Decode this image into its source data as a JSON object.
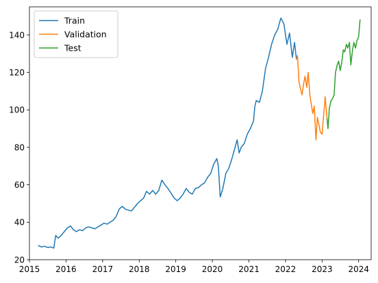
{
  "chart_data": {
    "type": "line",
    "title": "",
    "xlabel": "",
    "ylabel": "",
    "xlim": [
      "2015-01-01",
      "2024-05-05"
    ],
    "ylim": [
      20,
      155
    ],
    "x_ticks": [
      "2015",
      "2016",
      "2017",
      "2018",
      "2019",
      "2020",
      "2021",
      "2022",
      "2023",
      "2024"
    ],
    "y_ticks": [
      20,
      40,
      60,
      80,
      100,
      120,
      140
    ],
    "grid": false,
    "legend_position": "top-left",
    "series": [
      {
        "name": "Train",
        "color": "#1f77b4",
        "points": [
          [
            "2015-04-01",
            27.5
          ],
          [
            "2015-05-01",
            26.8
          ],
          [
            "2015-06-01",
            27.2
          ],
          [
            "2015-07-01",
            26.5
          ],
          [
            "2015-08-01",
            26.8
          ],
          [
            "2015-09-01",
            26.2
          ],
          [
            "2015-09-20",
            33.0
          ],
          [
            "2015-10-15",
            31.5
          ],
          [
            "2015-11-15",
            33.0
          ],
          [
            "2015-12-15",
            35.0
          ],
          [
            "2016-01-15",
            37.0
          ],
          [
            "2016-02-15",
            38.0
          ],
          [
            "2016-03-15",
            36.0
          ],
          [
            "2016-04-15",
            35.0
          ],
          [
            "2016-05-15",
            36.0
          ],
          [
            "2016-06-15",
            35.5
          ],
          [
            "2016-07-15",
            37.0
          ],
          [
            "2016-08-15",
            37.5
          ],
          [
            "2016-09-15",
            37.0
          ],
          [
            "2016-10-15",
            36.5
          ],
          [
            "2016-11-15",
            37.5
          ],
          [
            "2016-12-15",
            38.5
          ],
          [
            "2017-01-15",
            39.5
          ],
          [
            "2017-02-15",
            39.0
          ],
          [
            "2017-03-15",
            40.0
          ],
          [
            "2017-04-15",
            41.0
          ],
          [
            "2017-05-15",
            43.0
          ],
          [
            "2017-06-15",
            47.0
          ],
          [
            "2017-07-15",
            48.5
          ],
          [
            "2017-08-15",
            47.0
          ],
          [
            "2017-09-15",
            46.5
          ],
          [
            "2017-10-15",
            46.0
          ],
          [
            "2017-11-15",
            48.0
          ],
          [
            "2017-12-15",
            50.0
          ],
          [
            "2018-01-15",
            51.5
          ],
          [
            "2018-02-15",
            53.0
          ],
          [
            "2018-03-15",
            56.5
          ],
          [
            "2018-04-15",
            55.0
          ],
          [
            "2018-05-15",
            57.0
          ],
          [
            "2018-06-15",
            55.0
          ],
          [
            "2018-07-15",
            57.0
          ],
          [
            "2018-08-15",
            62.5
          ],
          [
            "2018-09-15",
            60.0
          ],
          [
            "2018-10-15",
            58.0
          ],
          [
            "2018-11-15",
            55.5
          ],
          [
            "2018-12-15",
            53.0
          ],
          [
            "2019-01-15",
            51.5
          ],
          [
            "2019-02-15",
            53.0
          ],
          [
            "2019-03-15",
            55.0
          ],
          [
            "2019-04-15",
            58.0
          ],
          [
            "2019-05-15",
            56.0
          ],
          [
            "2019-06-15",
            55.0
          ],
          [
            "2019-07-15",
            58.0
          ],
          [
            "2019-08-15",
            58.5
          ],
          [
            "2019-09-15",
            60.0
          ],
          [
            "2019-10-15",
            61.0
          ],
          [
            "2019-11-15",
            64.0
          ],
          [
            "2019-12-15",
            66.0
          ],
          [
            "2020-01-15",
            71.0
          ],
          [
            "2020-02-15",
            74.0
          ],
          [
            "2020-03-01",
            70.0
          ],
          [
            "2020-03-20",
            53.5
          ],
          [
            "2020-04-15",
            58.0
          ],
          [
            "2020-05-15",
            66.0
          ],
          [
            "2020-06-15",
            69.0
          ],
          [
            "2020-07-15",
            74.0
          ],
          [
            "2020-08-15",
            80.0
          ],
          [
            "2020-09-05",
            84.0
          ],
          [
            "2020-09-25",
            77.0
          ],
          [
            "2020-10-15",
            80.0
          ],
          [
            "2020-11-15",
            82.0
          ],
          [
            "2020-12-15",
            87.0
          ],
          [
            "2021-01-15",
            90.0
          ],
          [
            "2021-02-15",
            94.0
          ],
          [
            "2021-03-01",
            102.0
          ],
          [
            "2021-03-15",
            105.0
          ],
          [
            "2021-04-15",
            104.0
          ],
          [
            "2021-05-15",
            110.0
          ],
          [
            "2021-06-15",
            122.0
          ],
          [
            "2021-07-15",
            128.0
          ],
          [
            "2021-08-15",
            135.0
          ],
          [
            "2021-09-15",
            140.0
          ],
          [
            "2021-10-15",
            143.0
          ],
          [
            "2021-11-15",
            149.0
          ],
          [
            "2021-12-15",
            146.0
          ],
          [
            "2022-01-15",
            135.0
          ],
          [
            "2022-02-10",
            141.0
          ],
          [
            "2022-03-10",
            128.0
          ],
          [
            "2022-04-01",
            136.0
          ],
          [
            "2022-04-20",
            127.0
          ]
        ]
      },
      {
        "name": "Validation",
        "color": "#ff7f0e",
        "points": [
          [
            "2022-04-20",
            127.0
          ],
          [
            "2022-05-01",
            129.0
          ],
          [
            "2022-05-15",
            115.0
          ],
          [
            "2022-06-01",
            111.0
          ],
          [
            "2022-06-15",
            108.0
          ],
          [
            "2022-07-01",
            114.0
          ],
          [
            "2022-07-15",
            118.0
          ],
          [
            "2022-08-01",
            112.0
          ],
          [
            "2022-08-15",
            120.0
          ],
          [
            "2022-09-01",
            108.0
          ],
          [
            "2022-09-15",
            103.0
          ],
          [
            "2022-10-01",
            98.0
          ],
          [
            "2022-10-15",
            102.0
          ],
          [
            "2022-11-01",
            84.0
          ],
          [
            "2022-11-15",
            96.0
          ],
          [
            "2022-12-01",
            92.0
          ],
          [
            "2022-12-15",
            88.0
          ],
          [
            "2023-01-01",
            87.0
          ],
          [
            "2023-01-15",
            96.0
          ],
          [
            "2023-02-01",
            107.0
          ],
          [
            "2023-02-20",
            95.0
          ]
        ]
      },
      {
        "name": "Test",
        "color": "#2ca02c",
        "points": [
          [
            "2023-02-20",
            95.0
          ],
          [
            "2023-03-01",
            90.0
          ],
          [
            "2023-03-15",
            101.0
          ],
          [
            "2023-04-01",
            105.0
          ],
          [
            "2023-04-15",
            106.0
          ],
          [
            "2023-05-01",
            108.0
          ],
          [
            "2023-05-15",
            120.0
          ],
          [
            "2023-06-01",
            124.0
          ],
          [
            "2023-06-15",
            126.0
          ],
          [
            "2023-07-01",
            121.0
          ],
          [
            "2023-07-15",
            125.0
          ],
          [
            "2023-08-01",
            132.0
          ],
          [
            "2023-08-15",
            131.0
          ],
          [
            "2023-09-01",
            135.0
          ],
          [
            "2023-09-15",
            133.0
          ],
          [
            "2023-10-01",
            136.0
          ],
          [
            "2023-10-15",
            124.0
          ],
          [
            "2023-11-01",
            132.0
          ],
          [
            "2023-11-15",
            136.0
          ],
          [
            "2023-12-01",
            133.0
          ],
          [
            "2023-12-15",
            137.0
          ],
          [
            "2024-01-01",
            139.0
          ],
          [
            "2024-01-15",
            148.0
          ]
        ]
      }
    ]
  }
}
